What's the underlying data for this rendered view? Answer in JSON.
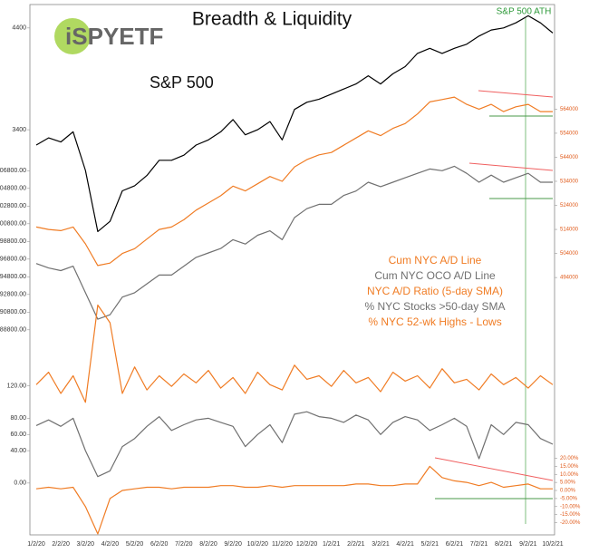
{
  "chart_data": {
    "type": "line",
    "title": "Breadth & Liquidity",
    "logo": "iSPYETF",
    "annotations": [
      "S&P 500",
      "S&P 500 ATH"
    ],
    "categories": [
      "1/2/20",
      null,
      "2/2/20",
      null,
      "3/2/20",
      null,
      "4/2/20",
      null,
      "5/2/20",
      null,
      "6/2/20",
      null,
      "7/2/20",
      null,
      "8/2/20",
      null,
      "9/2/20",
      null,
      "10/2/20",
      null,
      "11/2/20",
      null,
      "12/2/20",
      null,
      "1/2/21",
      null,
      "2/2/21",
      null,
      "3/2/21",
      null,
      "4/2/21",
      null,
      "5/2/21",
      null,
      "6/2/21",
      null,
      "7/2/21",
      null,
      "8/2/21",
      null,
      "9/2/21",
      null,
      "10/2/21"
    ],
    "series": [
      {
        "name": "S&P 500",
        "color": "#000000",
        "axis": "left",
        "legend": false,
        "ylim": [
          -580,
          4630
        ],
        "yticks": [
          3400,
          4400
        ],
        "values": [
          3250,
          3320,
          3280,
          3380,
          3000,
          2400,
          2500,
          2800,
          2850,
          2950,
          3100,
          3100,
          3150,
          3250,
          3300,
          3380,
          3500,
          3350,
          3400,
          3480,
          3300,
          3600,
          3670,
          3700,
          3750,
          3800,
          3850,
          3930,
          3850,
          3950,
          4020,
          4150,
          4200,
          4150,
          4200,
          4240,
          4320,
          4380,
          4400,
          4450,
          4520,
          4450,
          4350
        ]
      },
      {
        "name": "Cum NYC A/D Line",
        "color": "#f07c24",
        "axis": "right",
        "ylim": [
          387000,
          607500
        ],
        "yticks": [
          494000,
          504000,
          514000,
          524000,
          534000,
          544000,
          554000,
          564000
        ],
        "values": [
          515000,
          514000,
          513500,
          515000,
          508000,
          499000,
          500000,
          504000,
          506000,
          510000,
          514000,
          515000,
          518000,
          522000,
          525000,
          528000,
          532000,
          530000,
          533000,
          536000,
          534000,
          540000,
          543000,
          545000,
          546000,
          549000,
          552000,
          555000,
          553000,
          556000,
          558000,
          562000,
          567000,
          568000,
          569000,
          566000,
          564000,
          566000,
          563000,
          565000,
          566000,
          563000,
          563000
        ]
      },
      {
        "name": "Cum NYC OCO A/D Line",
        "color": "#707070",
        "axis": "left",
        "ylim": [
          65600,
          125600
        ],
        "yticks": [
          {
            "value": 88800,
            "label": "88800.00"
          },
          {
            "value": 90800,
            "label": "90800.00"
          },
          {
            "value": 92800,
            "label": "92800.00"
          },
          {
            "value": 94800,
            "label": "94800.00"
          },
          {
            "value": 96800,
            "label": "96800.00"
          },
          {
            "value": 98800,
            "label": "98800.00"
          },
          {
            "value": 100800,
            "label": "100800.00"
          },
          {
            "value": 102800,
            "label": "102800.00"
          },
          {
            "value": 104800,
            "label": "104800.00"
          },
          {
            "value": 106800,
            "label": "106800.00"
          }
        ],
        "values": [
          96300,
          95800,
          95500,
          96000,
          93000,
          90000,
          90500,
          92500,
          93000,
          94000,
          95000,
          95000,
          96000,
          97000,
          97500,
          98000,
          99000,
          98500,
          99500,
          100000,
          99000,
          101500,
          102500,
          103000,
          103000,
          104000,
          104500,
          105500,
          105000,
          105500,
          106000,
          106500,
          107000,
          106800,
          107300,
          106500,
          105500,
          106300,
          105500,
          106000,
          106500,
          105500,
          105500
        ]
      },
      {
        "name": "NYC A/D Ratio (5-day SMA)",
        "color": "#f07c24",
        "axis": "right",
        "ylim": [
          0,
          30
        ],
        "values": [
          8.5,
          9.2,
          8.0,
          9.0,
          7.5,
          13.0,
          12.0,
          8.0,
          9.5,
          8.2,
          9.0,
          8.4,
          9.1,
          8.6,
          9.3,
          8.3,
          8.9,
          8.0,
          9.2,
          8.5,
          8.2,
          9.6,
          8.8,
          9.0,
          8.4,
          9.3,
          8.6,
          8.9,
          8.1,
          9.2,
          8.7,
          9.0,
          8.3,
          9.4,
          8.6,
          8.8,
          8.2,
          9.1,
          8.5,
          8.9,
          8.3,
          9.0,
          8.5
        ]
      },
      {
        "name": "% NYC Stocks >50-day SMA",
        "color": "#707070",
        "axis": "left",
        "ylim": [
          -64,
          591
        ],
        "yticks": [
          {
            "value": 0,
            "label": "0.00"
          },
          {
            "value": 40,
            "label": "40.00"
          },
          {
            "value": 60,
            "label": "60.00"
          },
          {
            "value": 80,
            "label": "80.00"
          },
          {
            "value": 120,
            "label": "120.00"
          }
        ],
        "values": [
          71,
          78,
          70,
          80,
          40,
          8,
          15,
          45,
          55,
          70,
          82,
          65,
          72,
          78,
          80,
          75,
          70,
          45,
          60,
          72,
          50,
          85,
          88,
          82,
          80,
          75,
          84,
          78,
          60,
          75,
          82,
          78,
          65,
          72,
          80,
          70,
          30,
          72,
          60,
          75,
          72,
          55,
          48
        ]
      },
      {
        "name": "% NYC 52-wk Highs - Lows",
        "color": "#f07c24",
        "axis": "right",
        "ylim": [
          -27.6,
          302
        ],
        "yticks": [
          {
            "value": 20,
            "label": "20.00%"
          },
          {
            "value": 15,
            "label": "15.00%"
          },
          {
            "value": 10,
            "label": "10.00%"
          },
          {
            "value": 5,
            "label": "5.00%"
          },
          {
            "value": 0,
            "label": "0.00%"
          },
          {
            "value": -5,
            "label": "-5.00%"
          },
          {
            "value": -10,
            "label": "-10.00%"
          },
          {
            "value": -15,
            "label": "-15.00%"
          },
          {
            "value": -20,
            "label": "-20.00%"
          }
        ],
        "values": [
          1,
          2,
          1,
          2,
          -10,
          -27,
          -5,
          0,
          1,
          2,
          2,
          1,
          2,
          2,
          2,
          3,
          3,
          2,
          2,
          3,
          2,
          3,
          3,
          3,
          3,
          3,
          4,
          4,
          3,
          3,
          4,
          4,
          15,
          8,
          6,
          5,
          3,
          5,
          2,
          3,
          4,
          1,
          1
        ]
      }
    ]
  }
}
